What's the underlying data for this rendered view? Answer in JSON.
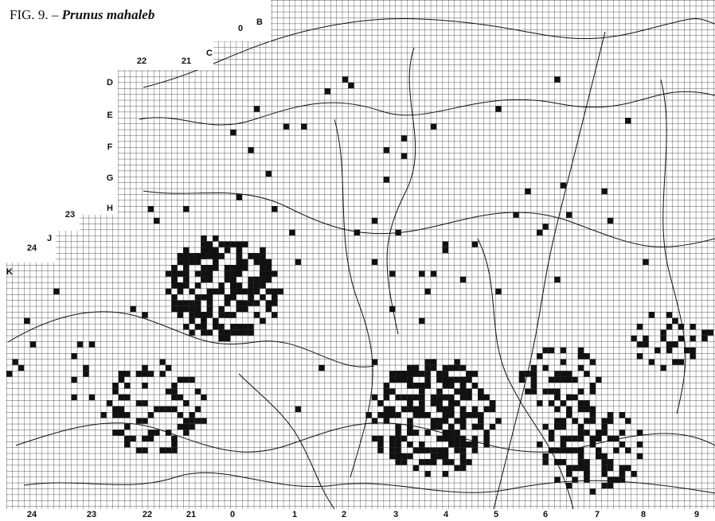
{
  "figure": {
    "label": "FIG. 9.",
    "dash": "–",
    "species": "Prunus mahaleb"
  },
  "margin_labels": [
    "0",
    "B",
    "C",
    "22",
    "21",
    "D",
    "E",
    "F",
    "G",
    "H",
    "23",
    "J",
    "24",
    "K"
  ],
  "bottom_labels": [
    "24",
    "23",
    "22",
    "21",
    "0",
    "1",
    "2",
    "3",
    "4",
    "5",
    "6",
    "7",
    "8",
    "9"
  ]
}
